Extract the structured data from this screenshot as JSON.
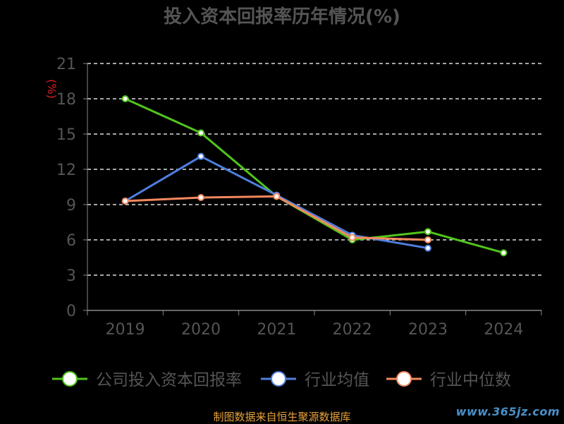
{
  "chart_data": {
    "type": "line",
    "title": "投入资本回报率历年情况(%)",
    "ylabel": "(%)",
    "ylim": [
      0,
      21
    ],
    "yticks": [
      0,
      3,
      6,
      9,
      12,
      15,
      18,
      21
    ],
    "categories": [
      "2019",
      "2020",
      "2021",
      "2022",
      "2023",
      "2024"
    ],
    "grid": true,
    "legend_position": "bottom",
    "series": [
      {
        "name": "公司投入资本回报率",
        "color": "#52c41a",
        "values": [
          18.0,
          15.1,
          9.7,
          6.0,
          6.7,
          4.9
        ]
      },
      {
        "name": "行业均值",
        "color": "#4f7fde",
        "values": [
          9.3,
          13.1,
          9.8,
          6.4,
          5.3,
          null
        ]
      },
      {
        "name": "行业中位数",
        "color": "#f4895f",
        "values": [
          9.3,
          9.6,
          9.7,
          6.2,
          6.0,
          null
        ]
      }
    ]
  },
  "footer": {
    "source": "制图数据来自恒生聚源数据库",
    "watermark": "www.365jz.com"
  }
}
